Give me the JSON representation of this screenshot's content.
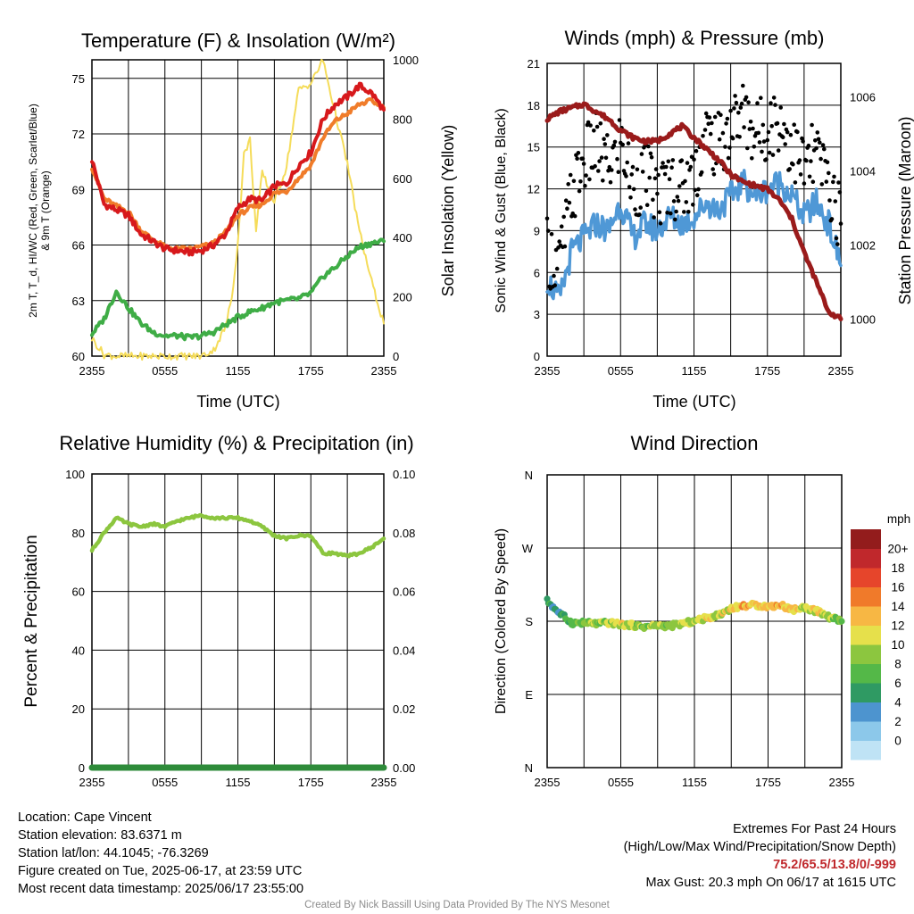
{
  "panels": {
    "temperature": {
      "title": "Temperature (F) & Insolation (W/m²)",
      "ylabel_left": [
        "2m T, T_d, HI/WC (Red, Green, Scarlet/Blue)",
        "& 9m T (Orange)"
      ],
      "ylabel_right": "Solar Insolation (Yellow)",
      "xlabel": "Time (UTC)"
    },
    "winds": {
      "title": "Winds (mph) & Pressure (mb)",
      "ylabel_left": "Sonic Wind & Gust (Blue, Black)",
      "ylabel_right": "Station Pressure (Maroon)",
      "xlabel": "Time (UTC)"
    },
    "humidity": {
      "title": "Relative Humidity (%) & Precipitation (in)",
      "ylabel_left": "Percent & Precipitation"
    },
    "direction": {
      "title": "Wind Direction",
      "ylabel_left": "Direction (Colored By Speed)",
      "colorbar_title": "mph"
    }
  },
  "colors": {
    "temperature": "#d7191c",
    "temp_9m": "#f07c2a",
    "dewpoint": "#3fad46",
    "insolation": "#f5dc5a",
    "wind": "#4f98d6",
    "gust": "#000000",
    "pressure": "#9a1b1b",
    "rh": "#8cc63f",
    "precip": "#2e8b3a"
  },
  "chart_data": [
    {
      "type": "line",
      "x_tick_labels": [
        "2355",
        "0555",
        "1155",
        "1755",
        "2355"
      ],
      "ylim": [
        60,
        76
      ],
      "y_ticks": [
        60,
        63,
        66,
        69,
        72,
        75
      ],
      "y2lim": [
        0,
        1000
      ],
      "y2_ticks": [
        0,
        200,
        400,
        600,
        800,
        1000
      ],
      "series": [
        {
          "key": "temperature",
          "axis": "left",
          "x": [
            0,
            1,
            2,
            3,
            4,
            5,
            6,
            7,
            8,
            9,
            10,
            11,
            12,
            13,
            14,
            15,
            16,
            17,
            18,
            19,
            20,
            21,
            22,
            23,
            24
          ],
          "values": [
            70.6,
            68.2,
            67.9,
            67.6,
            66.6,
            66.2,
            65.8,
            65.7,
            65.6,
            65.7,
            66.0,
            66.6,
            68.0,
            68.5,
            68.4,
            69.2,
            69.3,
            70.3,
            71.0,
            72.8,
            73.6,
            74.0,
            74.6,
            74.2,
            73.3
          ]
        },
        {
          "key": "temp_9m",
          "axis": "left",
          "x": [
            0,
            1,
            2,
            3,
            4,
            5,
            6,
            7,
            8,
            9,
            10,
            11,
            12,
            13,
            14,
            15,
            16,
            17,
            18,
            19,
            20,
            21,
            22,
            23,
            24
          ],
          "values": [
            70.2,
            68.5,
            68.1,
            67.8,
            66.8,
            66.3,
            65.9,
            65.8,
            65.8,
            65.9,
            66.1,
            66.7,
            67.6,
            68.0,
            68.2,
            68.8,
            68.9,
            69.6,
            70.3,
            71.8,
            72.7,
            73.1,
            73.6,
            73.8,
            73.4
          ]
        },
        {
          "key": "dewpoint",
          "axis": "left",
          "x": [
            0,
            1,
            2,
            3,
            4,
            5,
            6,
            7,
            8,
            9,
            10,
            11,
            12,
            13,
            14,
            15,
            16,
            17,
            18,
            19,
            20,
            21,
            22,
            23,
            24
          ],
          "values": [
            61.2,
            62.0,
            63.5,
            62.6,
            61.8,
            61.3,
            61.1,
            61.1,
            61.0,
            61.1,
            61.3,
            61.7,
            62.1,
            62.4,
            62.6,
            62.9,
            63.0,
            63.1,
            63.4,
            64.3,
            64.8,
            65.4,
            65.9,
            66.1,
            66.2
          ]
        },
        {
          "key": "insolation",
          "axis": "right",
          "x": [
            0,
            1,
            2,
            3,
            4,
            5,
            6,
            7,
            8,
            9,
            10,
            11,
            11.5,
            12,
            12.5,
            13,
            13.5,
            14,
            15,
            16,
            17,
            18,
            19,
            20,
            21,
            22,
            23,
            24
          ],
          "values": [
            60,
            5,
            0,
            0,
            0,
            0,
            0,
            0,
            0,
            0,
            20,
            100,
            200,
            380,
            680,
            730,
            420,
            620,
            520,
            640,
            900,
            920,
            1000,
            820,
            650,
            420,
            250,
            110
          ]
        }
      ]
    },
    {
      "type": "line",
      "x_tick_labels": [
        "2355",
        "0555",
        "1155",
        "1755",
        "2355"
      ],
      "ylim": [
        0,
        21
      ],
      "y_ticks": [
        0,
        3,
        6,
        9,
        12,
        15,
        18,
        21
      ],
      "y2lim": [
        999.0,
        1006.9
      ],
      "y2_ticks": [
        1000,
        1002,
        1004,
        1006
      ],
      "series": [
        {
          "key": "wind",
          "axis": "left",
          "x": [
            0,
            1,
            2,
            3,
            4,
            5,
            6,
            7,
            8,
            9,
            10,
            11,
            12,
            13,
            14,
            15,
            16,
            17,
            18,
            19,
            20,
            21,
            22,
            23,
            24
          ],
          "values": [
            5.5,
            4.0,
            7.5,
            8.5,
            9.5,
            9.0,
            11.0,
            8.5,
            9.5,
            9.0,
            10.0,
            9.5,
            10.0,
            11.0,
            10.5,
            11.5,
            12.5,
            11.5,
            12.0,
            12.5,
            11.5,
            10.0,
            11.0,
            9.5,
            6.5
          ]
        },
        {
          "key": "gust",
          "axis": "left",
          "type": "scatter",
          "x": [
            0,
            1,
            2,
            3,
            4,
            5,
            6,
            7,
            8,
            9,
            10,
            11,
            12,
            13,
            14,
            15,
            16,
            17,
            18,
            19,
            20,
            21,
            22,
            23,
            24
          ],
          "values": [
            7.5,
            6.5,
            11.5,
            14.0,
            15.0,
            13.5,
            15.5,
            12.0,
            13.0,
            11.5,
            12.5,
            12.0,
            13.0,
            16.0,
            15.0,
            16.5,
            17.5,
            16.0,
            16.5,
            17.0,
            15.0,
            13.5,
            14.5,
            12.5,
            9.5
          ]
        },
        {
          "key": "pressure",
          "axis": "right",
          "x": [
            0,
            1,
            2,
            3,
            4,
            5,
            6,
            7,
            8,
            9,
            10,
            11,
            12,
            13,
            14,
            15,
            16,
            17,
            18,
            19,
            20,
            21,
            22,
            23,
            24
          ],
          "values": [
            1005.4,
            1005.6,
            1005.7,
            1005.8,
            1005.6,
            1005.4,
            1005.1,
            1004.9,
            1004.8,
            1004.8,
            1005.0,
            1005.2,
            1004.9,
            1004.6,
            1004.3,
            1003.9,
            1003.7,
            1003.6,
            1003.5,
            1003.2,
            1002.7,
            1001.8,
            1001.0,
            1000.2,
            1000.0
          ]
        }
      ]
    },
    {
      "type": "line",
      "x_tick_labels": [
        "2355",
        "0555",
        "1155",
        "1755",
        "2355"
      ],
      "ylim": [
        0,
        100
      ],
      "y_ticks": [
        0,
        20,
        40,
        60,
        80,
        100
      ],
      "y2lim": [
        0,
        0.1
      ],
      "y2_ticks": [
        "0.00",
        "0.02",
        "0.04",
        "0.06",
        "0.08",
        "0.10"
      ],
      "series": [
        {
          "key": "rh",
          "axis": "left",
          "x": [
            0,
            1,
            2,
            3,
            4,
            5,
            6,
            7,
            8,
            9,
            10,
            11,
            12,
            13,
            14,
            15,
            16,
            17,
            18,
            19,
            20,
            21,
            22,
            23,
            24
          ],
          "values": [
            74,
            80,
            85,
            83,
            82,
            83,
            82,
            84,
            85,
            86,
            85,
            85,
            85,
            84,
            82,
            79,
            78,
            79,
            79,
            73,
            73,
            72,
            73,
            75,
            78
          ]
        },
        {
          "key": "precip",
          "axis": "right",
          "x": [
            0,
            24
          ],
          "values": [
            0,
            0
          ]
        }
      ]
    },
    {
      "type": "scatter",
      "x_tick_labels": [
        "2355",
        "0555",
        "1155",
        "1755",
        "2355"
      ],
      "y_tick_labels": [
        "N",
        "E",
        "S",
        "W",
        "N"
      ],
      "ylim": [
        0,
        360
      ],
      "colorbar_labels": [
        "0",
        "2",
        "4",
        "6",
        "8",
        "10",
        "12",
        "14",
        "16",
        "18",
        "20+"
      ],
      "colorbar_colors": [
        "#bfe3f5",
        "#8cc8ea",
        "#4d94cf",
        "#2f9a63",
        "#54b848",
        "#8cc63f",
        "#e6e04b",
        "#f7b744",
        "#f07a2a",
        "#e6452b",
        "#c0282c",
        "#931c1c"
      ],
      "series": [
        {
          "key": "direction",
          "x": [
            0,
            1,
            2,
            3,
            4,
            5,
            6,
            7,
            8,
            9,
            10,
            11,
            12,
            13,
            14,
            15,
            16,
            17,
            18,
            19,
            20,
            21,
            22,
            23,
            24
          ],
          "values": [
            205,
            190,
            178,
            178,
            177,
            178,
            176,
            175,
            173,
            175,
            174,
            177,
            180,
            184,
            188,
            196,
            199,
            200,
            198,
            200,
            194,
            197,
            192,
            185,
            180
          ],
          "speeds": [
            5,
            4,
            7,
            8,
            9,
            9,
            11,
            9,
            9,
            9,
            10,
            9,
            10,
            11,
            10,
            12,
            13,
            12,
            12,
            13,
            12,
            10,
            11,
            10,
            7
          ]
        }
      ]
    }
  ],
  "info": {
    "location": "Location: Cape Vincent",
    "elevation": "Station elevation: 83.6371 m",
    "latlon": "Station lat/lon: 44.1045; -76.3269",
    "created": "Figure created on Tue, 2025-06-17, at 23:59 UTC",
    "recent": "Most recent data timestamp: 2025/06/17 23:55:00"
  },
  "extremes": {
    "title": "Extremes For Past 24 Hours",
    "subtitle": "(High/Low/Max Wind/Precipitation/Snow Depth)",
    "values": "75.2/65.5/13.8/0/-999",
    "max_gust": "Max Gust: 20.3 mph On 06/17 at 1615 UTC"
  },
  "footer": "Created By Nick Bassill Using Data Provided By The NYS Mesonet"
}
